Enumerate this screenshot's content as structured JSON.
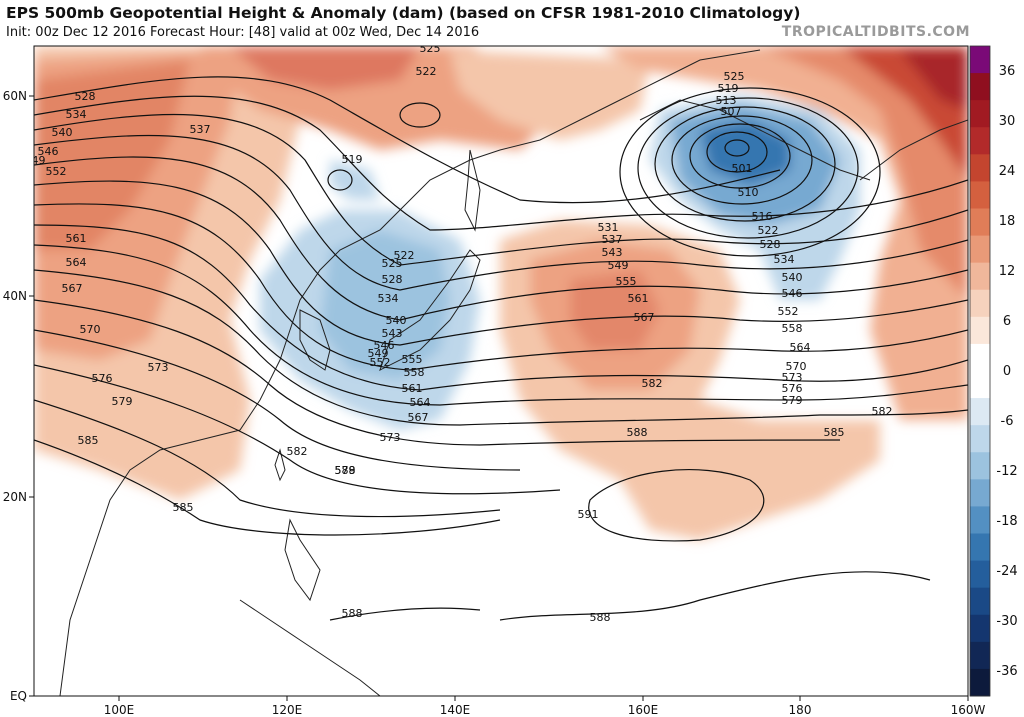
{
  "header": {
    "title": "EPS 500mb Geopotential Height & Anomaly (dam) (based on CFSR 1981-2010 Climatology)",
    "subtitle": "Init: 00z Dec 12 2016   Forecast Hour: [48]   valid at 00z Wed, Dec 14 2016",
    "credit": "TROPICALTIDBITS.COM"
  },
  "map": {
    "lon_ticks": [
      "100E",
      "120E",
      "140E",
      "160E",
      "180",
      "160W"
    ],
    "lat_ticks": [
      "60N",
      "40N",
      "20N",
      "EQ"
    ],
    "contour_labels": [
      "525",
      "522",
      "528",
      "534",
      "540",
      "537",
      "546",
      "549",
      "552",
      "519",
      "561",
      "564",
      "567",
      "570",
      "573",
      "576",
      "579",
      "585",
      "582",
      "588",
      "591",
      "525",
      "519",
      "513",
      "507",
      "501",
      "510",
      "516",
      "522",
      "528",
      "534",
      "540",
      "546",
      "552",
      "558",
      "564",
      "570",
      "573",
      "576",
      "579",
      "582",
      "585",
      "588",
      "531",
      "537",
      "543",
      "549",
      "555",
      "561",
      "567",
      "582",
      "588",
      "522",
      "525",
      "528",
      "534",
      "540",
      "543",
      "546",
      "549",
      "552",
      "555",
      "558",
      "561",
      "564",
      "567",
      "573",
      "579",
      "585",
      "588"
    ],
    "anomaly_features": [
      {
        "name": "low-center",
        "label": "501"
      },
      {
        "name": "ridge-center",
        "label": "591"
      }
    ]
  },
  "colorbar": {
    "labels": [
      "36",
      "30",
      "24",
      "18",
      "12",
      "6",
      "0",
      "-6",
      "-12",
      "-18",
      "-24",
      "-30",
      "-36"
    ],
    "colors": [
      "#7a0a77",
      "#8f0f1f",
      "#a11a22",
      "#b22a2a",
      "#c4452f",
      "#d4603f",
      "#e07d58",
      "#e99a78",
      "#f0b79b",
      "#f6d2bd",
      "#fbe7da",
      "#ffffff",
      "#ffffff",
      "#dce9f3",
      "#bed7ea",
      "#9cc3df",
      "#77a9d1",
      "#5390c2",
      "#3576b0",
      "#245e9c",
      "#1a4986",
      "#14366f",
      "#112755",
      "#0d1a3c"
    ]
  }
}
